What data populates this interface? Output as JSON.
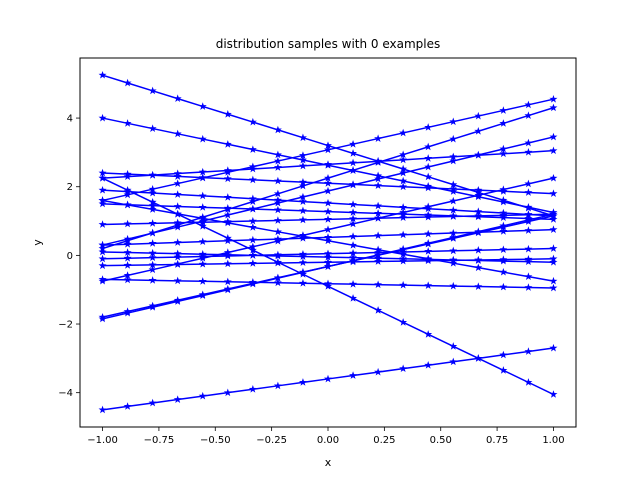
{
  "chart_data": {
    "type": "line",
    "title": "distribution samples with 0 examples",
    "xlabel": "x",
    "ylabel": "y",
    "xlim": [
      -1.1,
      1.1
    ],
    "ylim": [
      -5.0,
      5.75
    ],
    "xticks": [
      -1.0,
      -0.75,
      -0.5,
      -0.25,
      0.0,
      0.25,
      0.5,
      0.75,
      1.0
    ],
    "xtick_labels": [
      "−1.00",
      "−0.75",
      "−0.50",
      "−0.25",
      "0.00",
      "0.25",
      "0.50",
      "0.75",
      "1.00"
    ],
    "yticks": [
      -4,
      -2,
      0,
      2,
      4
    ],
    "ytick_labels": [
      "−4",
      "−2",
      "0",
      "2",
      "4"
    ],
    "grid": false,
    "legend": "none",
    "marker": "star",
    "color": "#0000ff",
    "x": [
      -1.0,
      -0.8889,
      -0.7778,
      -0.6667,
      -0.5556,
      -0.4444,
      -0.3333,
      -0.2222,
      -0.1111,
      0.0,
      0.1111,
      0.2222,
      0.3333,
      0.4444,
      0.5556,
      0.6667,
      0.7778,
      0.8889,
      1.0
    ],
    "series": [
      {
        "start": 5.25,
        "end": 1.15
      },
      {
        "start": 4.0,
        "end": 1.25
      },
      {
        "start": 2.4,
        "end": 1.8
      },
      {
        "start": 2.25,
        "end": 3.05
      },
      {
        "start": 1.9,
        "end": 1.15
      },
      {
        "start": 1.6,
        "end": 4.55
      },
      {
        "start": 1.6,
        "end": -0.75
      },
      {
        "start": 1.5,
        "end": 1.05
      },
      {
        "start": 0.9,
        "end": 1.2
      },
      {
        "start": 0.3,
        "end": 3.45
      },
      {
        "start": 0.3,
        "end": 0.75
      },
      {
        "start": 0.2,
        "end": 4.3
      },
      {
        "start": 0.1,
        "end": -0.2
      },
      {
        "start": -0.1,
        "end": 0.2
      },
      {
        "start": -0.3,
        "end": -0.1
      },
      {
        "start": -0.7,
        "end": -0.95
      },
      {
        "start": -0.75,
        "end": 2.25
      },
      {
        "start": -1.8,
        "end": 1.15
      },
      {
        "start": -1.85,
        "end": 1.2
      },
      {
        "start": 2.25,
        "end": -4.05
      },
      {
        "start": -4.5,
        "end": -2.7
      }
    ]
  }
}
